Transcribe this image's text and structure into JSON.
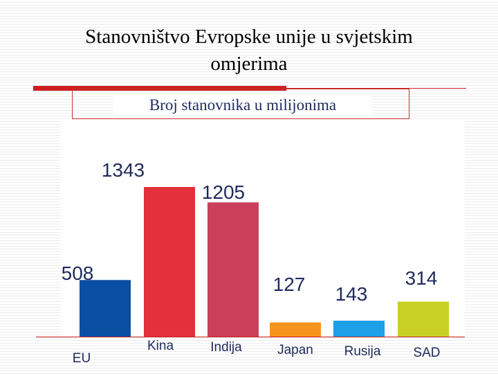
{
  "slide": {
    "title_line1": "Stanovništvo Evropske unije u svjetskim",
    "title_line2": "omjerima"
  },
  "chart_data": {
    "type": "bar",
    "title": "Broj stanovnika u milijonima",
    "categories": [
      "EU",
      "Kina",
      "Indija",
      "Japan",
      "Rusija",
      "SAD"
    ],
    "values": [
      508,
      1343,
      1205,
      127,
      143,
      314
    ],
    "value_labels": [
      "508",
      "1343",
      "1205",
      "127",
      "143",
      "314"
    ],
    "colors": [
      "#0a4fa3",
      "#e3303a",
      "#cc3f5c",
      "#f7941d",
      "#1ea0e6",
      "#c6d124"
    ],
    "ylim": [
      0,
      1343
    ],
    "grid": false,
    "legend": "none"
  }
}
